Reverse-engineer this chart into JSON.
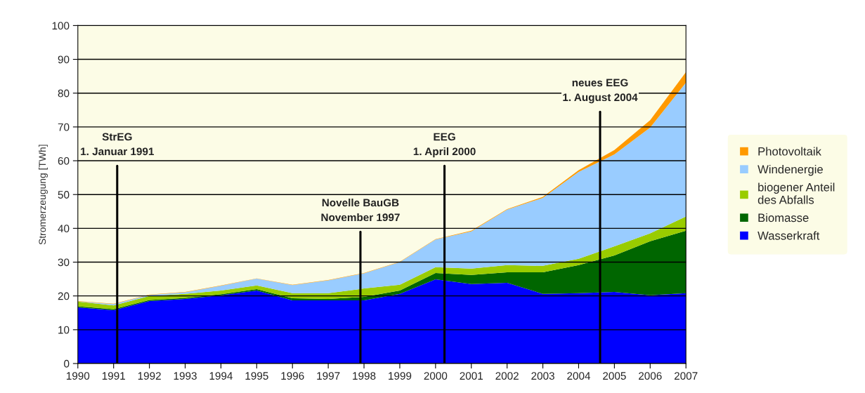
{
  "chart_data": {
    "type": "area",
    "stacked": true,
    "ylabel": "Stromerzeugung [TWh]",
    "x": [
      1990,
      1991,
      1992,
      1993,
      1994,
      1995,
      1996,
      1997,
      1998,
      1999,
      2000,
      2001,
      2002,
      2003,
      2004,
      2005,
      2006,
      2007
    ],
    "series": [
      {
        "name": "Wasserkraft",
        "color": "#0000ff",
        "values": [
          16.6,
          15.8,
          18.5,
          19.1,
          20.2,
          21.6,
          18.7,
          18.7,
          18.7,
          20.6,
          24.9,
          23.5,
          23.9,
          20.6,
          20.8,
          21.2,
          20.2,
          20.8
        ]
      },
      {
        "name": "Biomasse",
        "color": "#006600",
        "values": [
          0.3,
          0.3,
          0.3,
          0.3,
          0.3,
          0.4,
          0.6,
          0.4,
          1.0,
          1.0,
          1.9,
          2.7,
          3.1,
          6.4,
          8.3,
          10.8,
          16.0,
          18.5
        ]
      },
      {
        "name": "biogener Anteil\ndes Abfalls",
        "color": "#99cc00",
        "values": [
          1.4,
          1.1,
          1.2,
          1.2,
          1.1,
          1.1,
          1.5,
          1.7,
          2.5,
          1.7,
          1.7,
          1.9,
          2.1,
          1.9,
          1.9,
          2.7,
          2.3,
          4.2
        ]
      },
      {
        "name": "Windenergie",
        "color": "#99ccff",
        "values": [
          0.1,
          0.4,
          0.3,
          0.5,
          1.4,
          2.0,
          2.4,
          3.8,
          4.5,
          6.7,
          8.2,
          11.0,
          16.4,
          20.1,
          25.7,
          27.2,
          31.3,
          39.6
        ]
      },
      {
        "name": "Photovoltaik",
        "color": "#ff9900",
        "values": [
          0.1,
          0.1,
          0.1,
          0.1,
          0.1,
          0.1,
          0.1,
          0.1,
          0.1,
          0.1,
          0.1,
          0.2,
          0.2,
          0.3,
          0.5,
          1.3,
          2.2,
          3.1
        ]
      }
    ],
    "xlim": [
      1990,
      2007
    ],
    "xticks": [
      1990,
      1991,
      1992,
      1993,
      1994,
      1995,
      1996,
      1997,
      1998,
      1999,
      2000,
      2001,
      2002,
      2003,
      2004,
      2005,
      2006,
      2007
    ],
    "ylim": [
      0,
      100
    ],
    "yticks": [
      0,
      10,
      20,
      30,
      40,
      50,
      60,
      70,
      80,
      90,
      100
    ],
    "grid": "y",
    "legend": "right",
    "ref_lines": [
      {
        "axis": "x",
        "value": 1991.1,
        "label": "StrEG\n1. Januar 1991"
      },
      {
        "axis": "x",
        "value": 1997.9,
        "label": "Novelle BauGB\nNovember 1997"
      },
      {
        "axis": "x",
        "value": 2000.25,
        "label": "EEG\n1. April 2000"
      },
      {
        "axis": "x",
        "value": 2004.6,
        "label": "neues EEG\n1. August 2004"
      }
    ]
  }
}
